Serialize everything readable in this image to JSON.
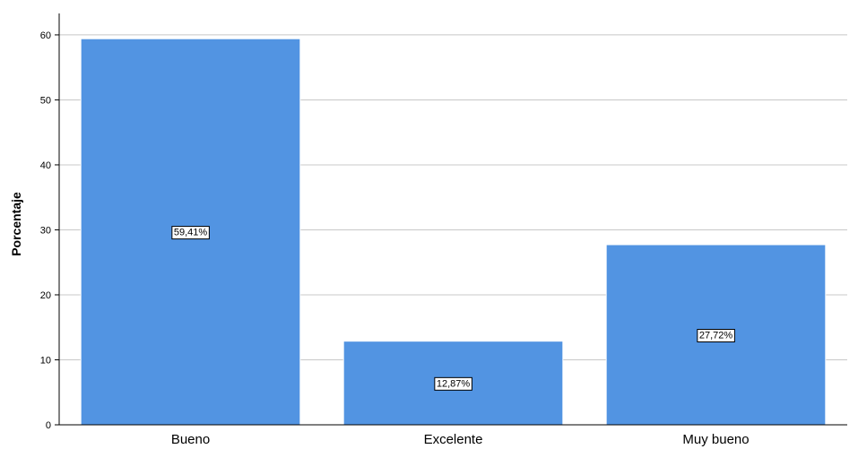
{
  "chart_data": {
    "type": "bar",
    "categories": [
      "Bueno",
      "Excelente",
      "Muy bueno"
    ],
    "values": [
      59.41,
      12.87,
      27.72
    ],
    "data_labels": [
      "59,41%",
      "12,87%",
      "27,72%"
    ],
    "ylabel": "Porcentaje",
    "xlabel": "",
    "ylim": [
      0,
      63.3
    ],
    "yticks": [
      0,
      10,
      20,
      30,
      40,
      50,
      60
    ],
    "grid": true,
    "bar_color": "#5294e2",
    "bar_edge_color": "#ffffff",
    "grid_color": "#c8c8c8"
  }
}
